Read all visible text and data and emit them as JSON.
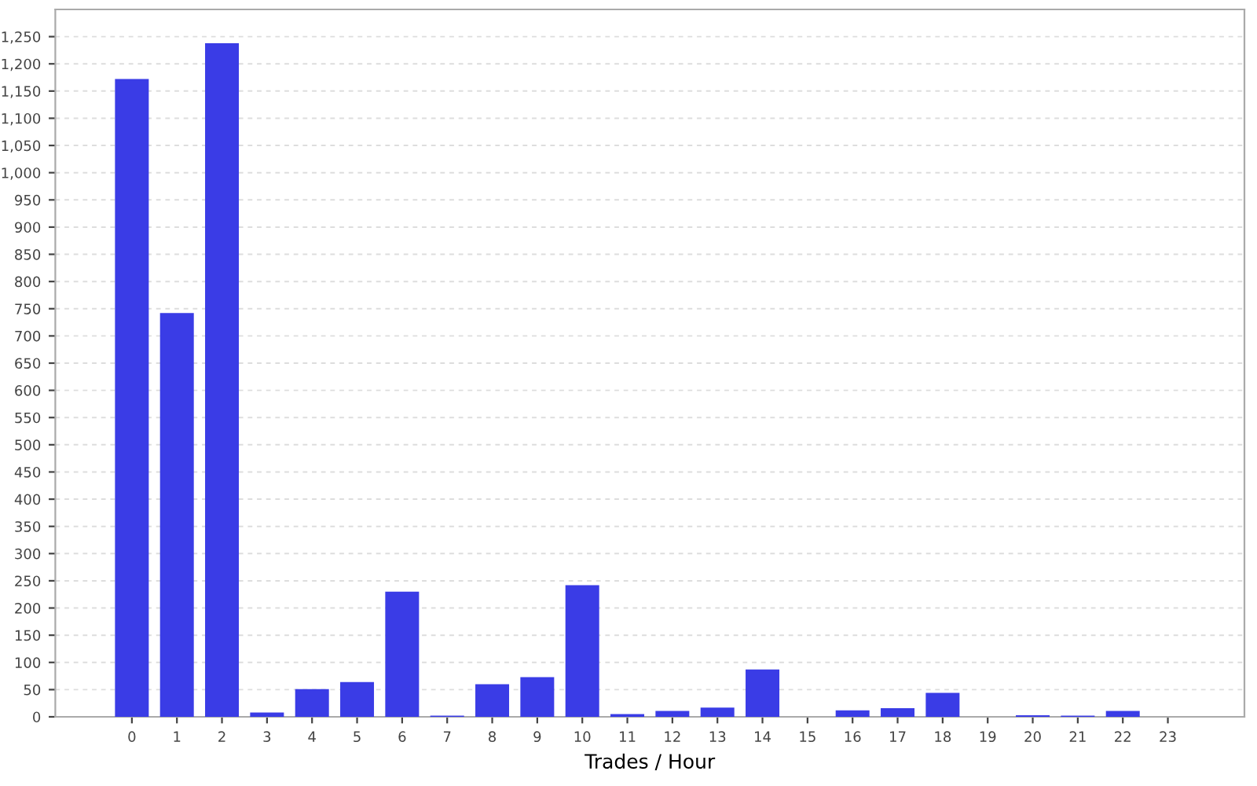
{
  "chart_data": {
    "type": "bar",
    "xlabel": "Trades / Hour",
    "categories": [
      "0",
      "1",
      "2",
      "3",
      "4",
      "5",
      "6",
      "7",
      "8",
      "9",
      "10",
      "11",
      "12",
      "13",
      "14",
      "15",
      "16",
      "17",
      "18",
      "19",
      "20",
      "21",
      "22",
      "23"
    ],
    "values": [
      1172,
      742,
      1238,
      8,
      51,
      64,
      230,
      2,
      60,
      73,
      242,
      5,
      11,
      17,
      87,
      0,
      12,
      16,
      44,
      0,
      3,
      2,
      11,
      0
    ],
    "color": "#3a3ce6",
    "ylim": [
      0,
      1300
    ],
    "yticks": [
      0,
      50,
      100,
      150,
      200,
      250,
      300,
      350,
      400,
      450,
      500,
      550,
      600,
      650,
      700,
      750,
      800,
      850,
      900,
      950,
      {
        "value": 1000,
        "label": "1,000"
      },
      {
        "value": 1050,
        "label": "1,050"
      },
      {
        "value": 1100,
        "label": "1,100"
      },
      {
        "value": 1150,
        "label": "1,150"
      },
      {
        "value": 1200,
        "label": "1,200"
      },
      {
        "value": 1250,
        "label": "1,250"
      }
    ],
    "grid": "y"
  }
}
